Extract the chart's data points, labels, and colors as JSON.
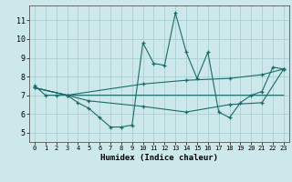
{
  "xlabel": "Humidex (Indice chaleur)",
  "bg_color": "#cce8ea",
  "grid_color": "#aacfd2",
  "line_color": "#1a6b6b",
  "xlim": [
    -0.5,
    23.5
  ],
  "ylim": [
    4.5,
    11.8
  ],
  "xticks": [
    0,
    1,
    2,
    3,
    4,
    5,
    6,
    7,
    8,
    9,
    10,
    11,
    12,
    13,
    14,
    15,
    16,
    17,
    18,
    19,
    20,
    21,
    22,
    23
  ],
  "yticks": [
    5,
    6,
    7,
    8,
    9,
    10,
    11
  ],
  "lines": [
    {
      "x": [
        0,
        1,
        2,
        3,
        4,
        5,
        6,
        7,
        8,
        9,
        10,
        11,
        12,
        13,
        14,
        15,
        16,
        17,
        18,
        19,
        20,
        21,
        22,
        23
      ],
      "y": [
        7.5,
        7.0,
        7.0,
        7.0,
        6.6,
        6.3,
        5.8,
        5.3,
        5.3,
        5.4,
        9.8,
        8.7,
        8.6,
        11.4,
        9.3,
        7.9,
        9.3,
        6.1,
        5.8,
        6.6,
        7.0,
        7.2,
        8.5,
        8.4
      ]
    },
    {
      "x": [
        0,
        3,
        10,
        14,
        18,
        21,
        23
      ],
      "y": [
        7.4,
        7.0,
        7.6,
        7.8,
        7.9,
        8.1,
        8.4
      ]
    },
    {
      "x": [
        0,
        3,
        5,
        10,
        14,
        18,
        21,
        23
      ],
      "y": [
        7.4,
        7.0,
        6.7,
        6.4,
        6.1,
        6.5,
        6.6,
        8.4
      ]
    },
    {
      "x": [
        0,
        3,
        23
      ],
      "y": [
        7.4,
        7.0,
        7.0
      ]
    }
  ]
}
